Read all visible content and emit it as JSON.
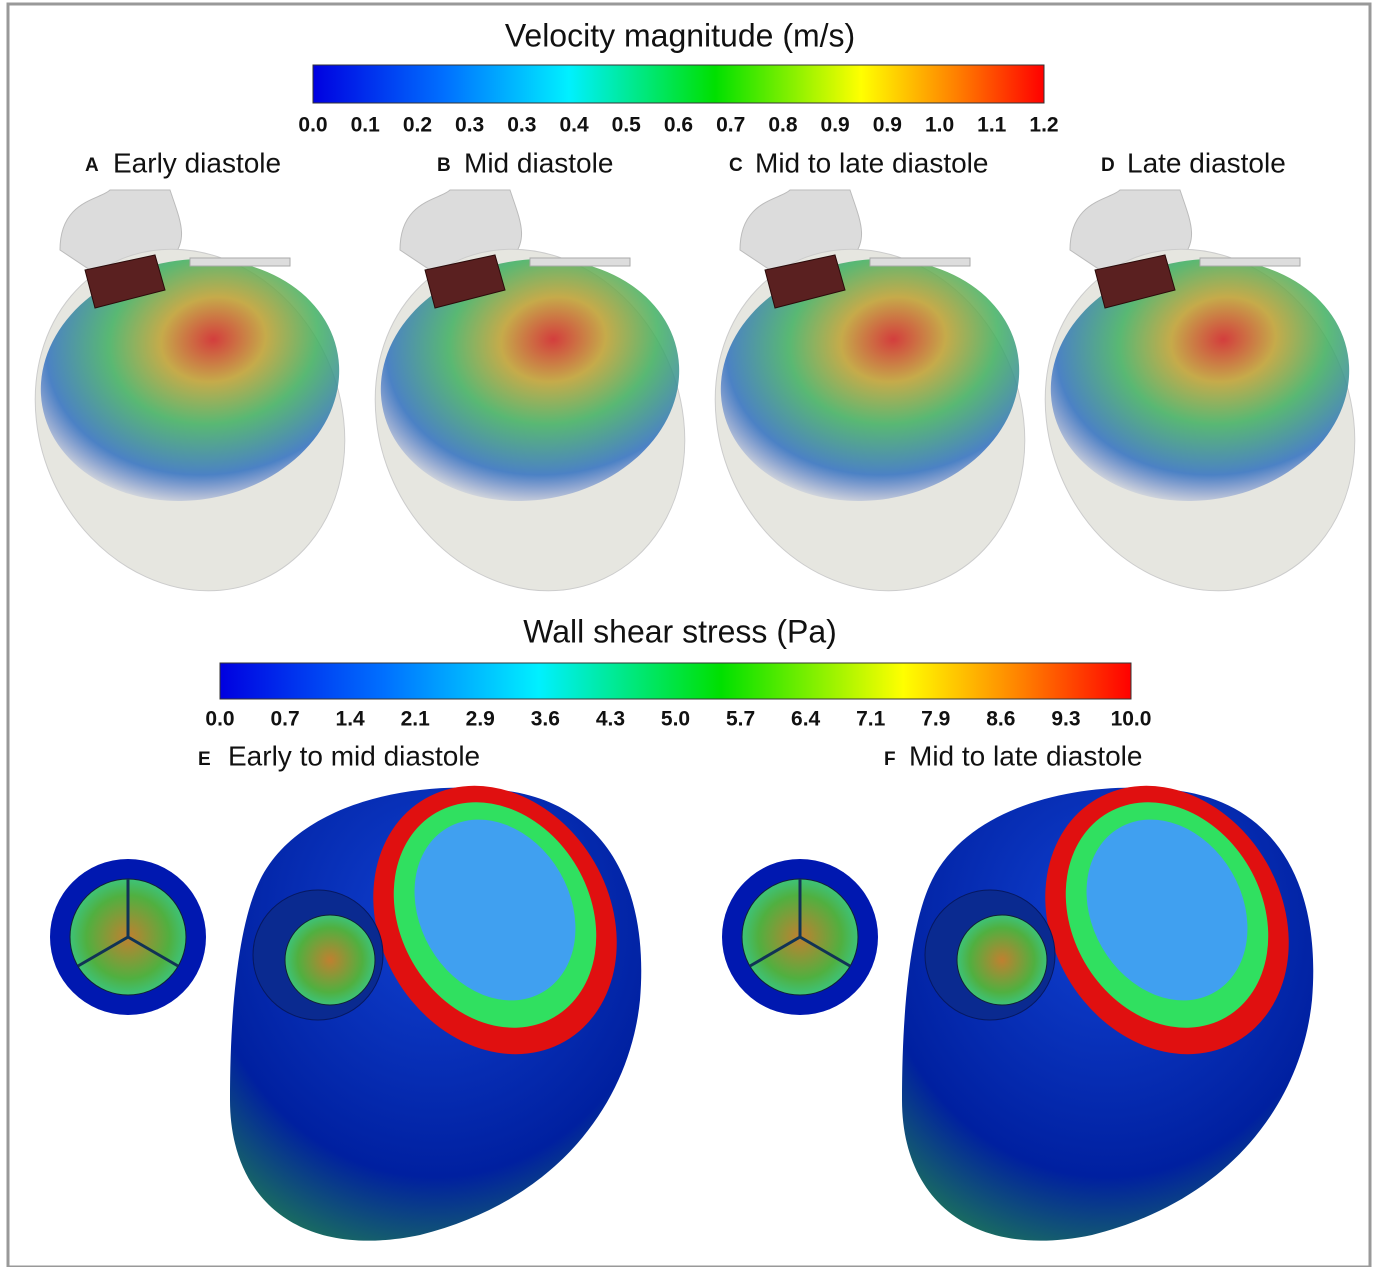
{
  "velocity_colorbar": {
    "title": "Velocity magnitude (m/s)",
    "ticks": [
      "0.0",
      "0.1",
      "0.2",
      "0.3",
      "0.3",
      "0.4",
      "0.5",
      "0.6",
      "0.7",
      "0.8",
      "0.9",
      "0.9",
      "1.0",
      "1.1",
      "1.2"
    ]
  },
  "velocity_panels": [
    {
      "letter": "A",
      "title": "Early diastole"
    },
    {
      "letter": "B",
      "title": "Mid diastole"
    },
    {
      "letter": "C",
      "title": "Mid to late diastole"
    },
    {
      "letter": "D",
      "title": "Late diastole"
    }
  ],
  "wss_colorbar": {
    "title": "Wall shear stress (Pa)",
    "ticks": [
      "0.0",
      "0.7",
      "1.4",
      "2.1",
      "2.9",
      "3.6",
      "4.3",
      "5.0",
      "5.7",
      "6.4",
      "7.1",
      "7.9",
      "8.6",
      "9.3",
      "10.0"
    ]
  },
  "wss_panels": [
    {
      "letter": "E",
      "title": "Early to mid diastole"
    },
    {
      "letter": "F",
      "title": "Mid to late diastole"
    }
  ]
}
